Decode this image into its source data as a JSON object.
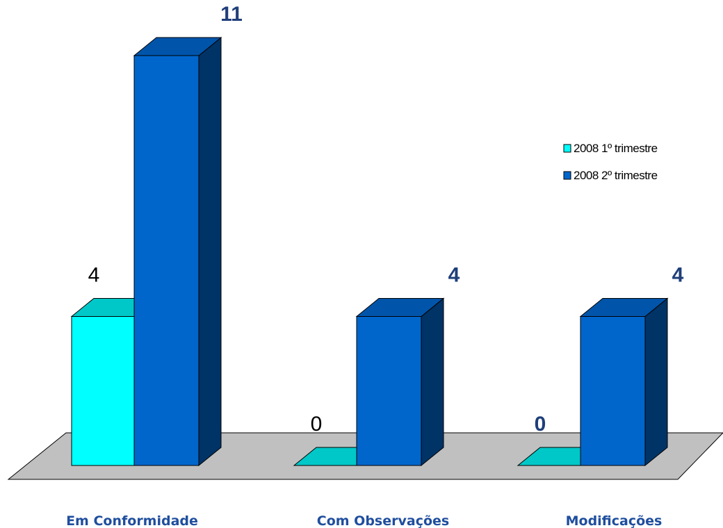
{
  "chart_data": {
    "type": "bar",
    "categories": [
      "Em Conformidade",
      "Com Observações",
      "Modificações"
    ],
    "series": [
      {
        "name": "2008 1º trimestre",
        "values": [
          4,
          0,
          0
        ],
        "value_labels": [
          "4",
          "0",
          "0"
        ],
        "color": "#00ffff",
        "top_color": "#00c8c8"
      },
      {
        "name": "2008 2º trimestre",
        "values": [
          11,
          4,
          4
        ],
        "value_labels": [
          "11",
          "4",
          "4"
        ],
        "color": "#0066cc",
        "top_color": "#0055aa",
        "side_color": "#003366"
      }
    ],
    "ylim": [
      0,
      11
    ],
    "floor_color": "#c0c0c0",
    "label_color": "#1f4e9e",
    "legend_position": "right",
    "grid": false
  }
}
